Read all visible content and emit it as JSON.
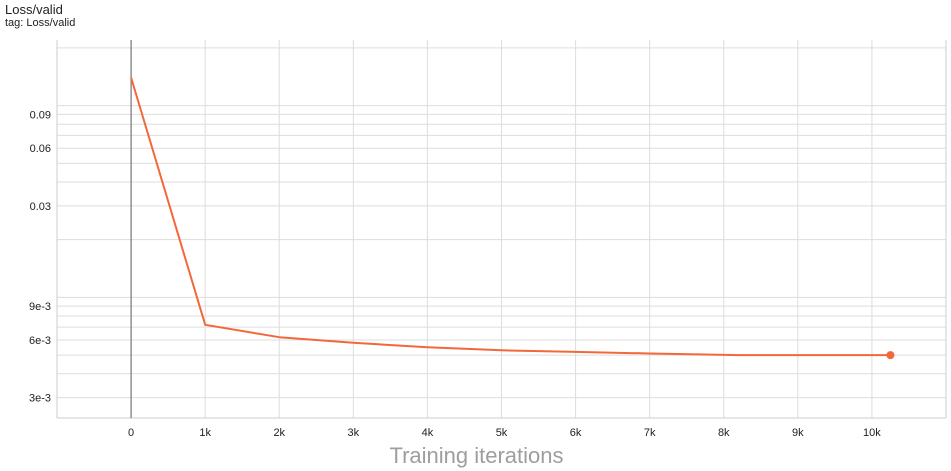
{
  "title": "Loss/valid",
  "subtitle": "tag: Loss/valid",
  "chart_data": {
    "type": "line",
    "xlabel": "Training iterations",
    "ylabel": "",
    "yscale": "log",
    "xlim": [
      -1000,
      11000
    ],
    "ylim": [
      0.00235,
      0.22
    ],
    "x_ticks": [
      0,
      1000,
      2000,
      3000,
      4000,
      5000,
      6000,
      7000,
      8000,
      9000,
      10000
    ],
    "x_tick_labels": [
      "0",
      "1k",
      "2k",
      "3k",
      "4k",
      "5k",
      "6k",
      "7k",
      "8k",
      "9k",
      "10k"
    ],
    "y_ticks": [
      0.003,
      0.006,
      0.009,
      0.03,
      0.06,
      0.09
    ],
    "y_tick_labels": [
      "3e-3",
      "6e-3",
      "9e-3",
      "0.03",
      "0.06",
      "0.09"
    ],
    "grid": true,
    "series": [
      {
        "color": "#f4673b",
        "x": [
          0,
          1000,
          2000,
          3000,
          4000,
          5000,
          6000,
          7000,
          8200,
          9000,
          10250
        ],
        "y": [
          0.14,
          0.0072,
          0.0062,
          0.0058,
          0.0055,
          0.0053,
          0.0052,
          0.0051,
          0.005,
          0.005,
          0.005
        ]
      }
    ]
  }
}
